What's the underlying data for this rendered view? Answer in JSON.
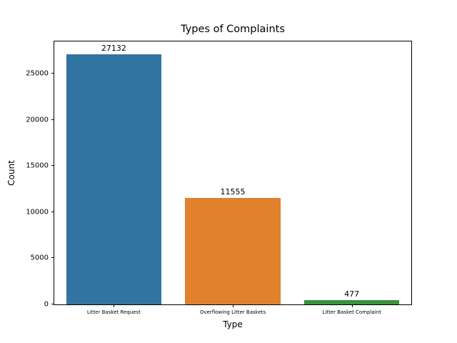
{
  "chart_data": {
    "type": "bar",
    "title": "Types of Complaints",
    "xlabel": "Type",
    "ylabel": "Count",
    "categories": [
      "Litter Basket Request",
      "Overflowing Litter Baskets",
      "Litter Basket Complaint"
    ],
    "values": [
      27132,
      11555,
      477
    ],
    "bar_labels": [
      "27132",
      "11555",
      "477"
    ],
    "bar_colors": [
      "#3274a1",
      "#e1812c",
      "#3a923a"
    ],
    "ylim": [
      0,
      28489
    ],
    "yticks": [
      0,
      5000,
      10000,
      15000,
      20000,
      25000
    ],
    "bar_width_fraction": 0.8,
    "grid": false,
    "legend": null
  }
}
